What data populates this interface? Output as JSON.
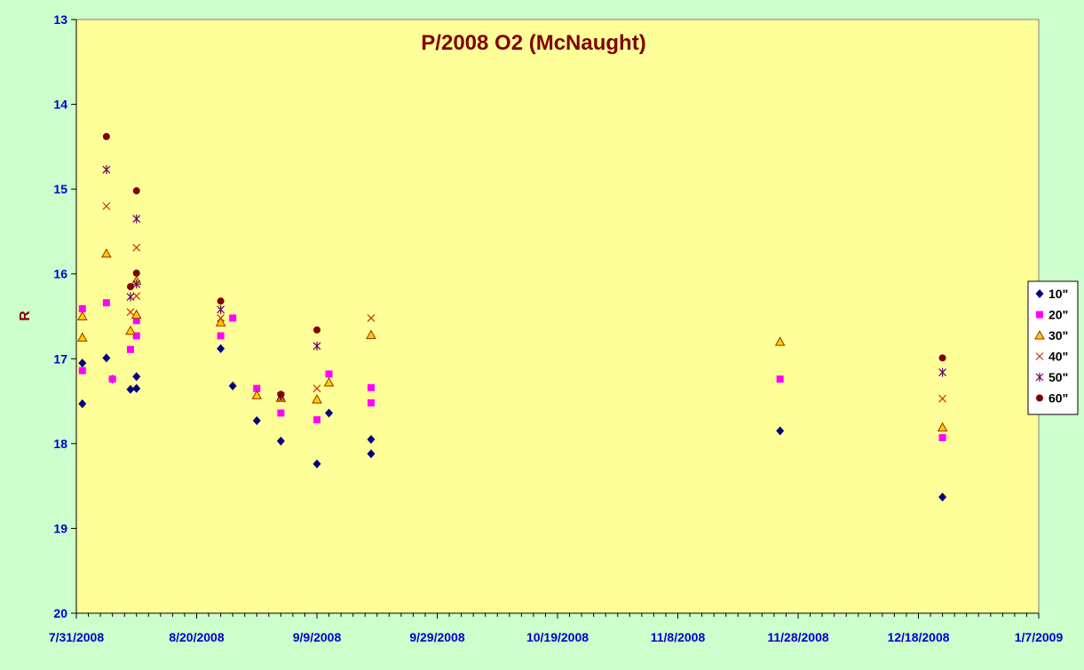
{
  "chart_data": {
    "type": "scatter",
    "title": "P/2008 O2 (McNaught)",
    "xlabel": "",
    "ylabel": "R",
    "y_reversed": true,
    "ylim": [
      13,
      20
    ],
    "y_ticks": [
      "13",
      "14",
      "15",
      "16",
      "17",
      "18",
      "19",
      "20"
    ],
    "xlim": [
      "2008-07-31",
      "2009-01-07"
    ],
    "x_ticks": [
      "7/31/2008",
      "8/20/2008",
      "9/9/2008",
      "9/29/2008",
      "10/19/2008",
      "11/8/2008",
      "11/28/2008",
      "12/18/2008",
      "1/7/2009"
    ],
    "grid": false,
    "legend_position": "right",
    "colors": {
      "plot_background": "#ffff99",
      "page_background": "#ccffcc",
      "title": "#800000",
      "axis_label": "#800000",
      "tick_labels": "#0000cc"
    },
    "series": [
      {
        "name": "10\"",
        "marker": "diamond",
        "color": "#000080",
        "points": [
          {
            "x": "2008-08-01",
            "y": 17.53
          },
          {
            "x": "2008-08-01",
            "y": 17.05
          },
          {
            "x": "2008-08-05",
            "y": 16.99
          },
          {
            "x": "2008-08-06",
            "y": 17.24
          },
          {
            "x": "2008-08-09",
            "y": 17.36
          },
          {
            "x": "2008-08-10",
            "y": 17.35
          },
          {
            "x": "2008-08-10",
            "y": 17.21
          },
          {
            "x": "2008-08-24",
            "y": 16.88
          },
          {
            "x": "2008-08-26",
            "y": 17.32
          },
          {
            "x": "2008-08-30",
            "y": 17.73
          },
          {
            "x": "2008-09-03",
            "y": 17.97
          },
          {
            "x": "2008-09-09",
            "y": 18.24
          },
          {
            "x": "2008-09-11",
            "y": 17.64
          },
          {
            "x": "2008-09-18",
            "y": 17.95
          },
          {
            "x": "2008-09-18",
            "y": 18.12
          },
          {
            "x": "2008-11-25",
            "y": 17.85
          },
          {
            "x": "2008-12-22",
            "y": 18.63
          }
        ]
      },
      {
        "name": "20\"",
        "marker": "square",
        "color": "#ff00ff",
        "points": [
          {
            "x": "2008-08-01",
            "y": 16.41
          },
          {
            "x": "2008-08-01",
            "y": 17.14
          },
          {
            "x": "2008-08-05",
            "y": 16.34
          },
          {
            "x": "2008-08-06",
            "y": 17.24
          },
          {
            "x": "2008-08-09",
            "y": 16.89
          },
          {
            "x": "2008-08-10",
            "y": 16.55
          },
          {
            "x": "2008-08-10",
            "y": 16.73
          },
          {
            "x": "2008-08-24",
            "y": 16.73
          },
          {
            "x": "2008-08-26",
            "y": 16.52
          },
          {
            "x": "2008-08-30",
            "y": 17.35
          },
          {
            "x": "2008-09-03",
            "y": 17.64
          },
          {
            "x": "2008-09-09",
            "y": 17.72
          },
          {
            "x": "2008-09-11",
            "y": 17.18
          },
          {
            "x": "2008-09-18",
            "y": 17.34
          },
          {
            "x": "2008-09-18",
            "y": 17.52
          },
          {
            "x": "2008-11-25",
            "y": 17.24
          },
          {
            "x": "2008-12-22",
            "y": 17.93
          }
        ]
      },
      {
        "name": "30\"",
        "marker": "triangle",
        "color": "#ffcc00",
        "points": [
          {
            "x": "2008-08-01",
            "y": 16.5
          },
          {
            "x": "2008-08-01",
            "y": 16.75
          },
          {
            "x": "2008-08-05",
            "y": 15.76
          },
          {
            "x": "2008-08-09",
            "y": 16.67
          },
          {
            "x": "2008-08-10",
            "y": 16.08
          },
          {
            "x": "2008-08-10",
            "y": 16.48
          },
          {
            "x": "2008-08-24",
            "y": 16.57
          },
          {
            "x": "2008-08-30",
            "y": 17.43
          },
          {
            "x": "2008-09-03",
            "y": 17.46
          },
          {
            "x": "2008-09-09",
            "y": 17.48
          },
          {
            "x": "2008-09-11",
            "y": 17.28
          },
          {
            "x": "2008-09-18",
            "y": 16.72
          },
          {
            "x": "2008-11-25",
            "y": 16.8
          },
          {
            "x": "2008-12-22",
            "y": 17.81
          }
        ]
      },
      {
        "name": "40\"",
        "marker": "x",
        "color": "#cc3300",
        "points": [
          {
            "x": "2008-08-05",
            "y": 15.2
          },
          {
            "x": "2008-08-09",
            "y": 16.45
          },
          {
            "x": "2008-08-10",
            "y": 15.69
          },
          {
            "x": "2008-08-10",
            "y": 16.26
          },
          {
            "x": "2008-08-24",
            "y": 16.52
          },
          {
            "x": "2008-09-03",
            "y": 17.47
          },
          {
            "x": "2008-09-09",
            "y": 17.35
          },
          {
            "x": "2008-09-18",
            "y": 16.52
          },
          {
            "x": "2008-12-22",
            "y": 17.47
          }
        ]
      },
      {
        "name": "50\"",
        "marker": "asterisk",
        "color": "#660066",
        "points": [
          {
            "x": "2008-08-05",
            "y": 14.77
          },
          {
            "x": "2008-08-09",
            "y": 16.27
          },
          {
            "x": "2008-08-10",
            "y": 15.35
          },
          {
            "x": "2008-08-10",
            "y": 16.12
          },
          {
            "x": "2008-08-24",
            "y": 16.42
          },
          {
            "x": "2008-09-03",
            "y": 17.44
          },
          {
            "x": "2008-09-09",
            "y": 16.85
          },
          {
            "x": "2008-12-22",
            "y": 17.16
          }
        ]
      },
      {
        "name": "60\"",
        "marker": "circle",
        "color": "#800000",
        "points": [
          {
            "x": "2008-08-05",
            "y": 14.38
          },
          {
            "x": "2008-08-09",
            "y": 16.15
          },
          {
            "x": "2008-08-10",
            "y": 15.02
          },
          {
            "x": "2008-08-10",
            "y": 15.99
          },
          {
            "x": "2008-08-24",
            "y": 16.32
          },
          {
            "x": "2008-09-03",
            "y": 17.42
          },
          {
            "x": "2008-09-09",
            "y": 16.66
          },
          {
            "x": "2008-12-22",
            "y": 16.99
          }
        ]
      }
    ]
  }
}
